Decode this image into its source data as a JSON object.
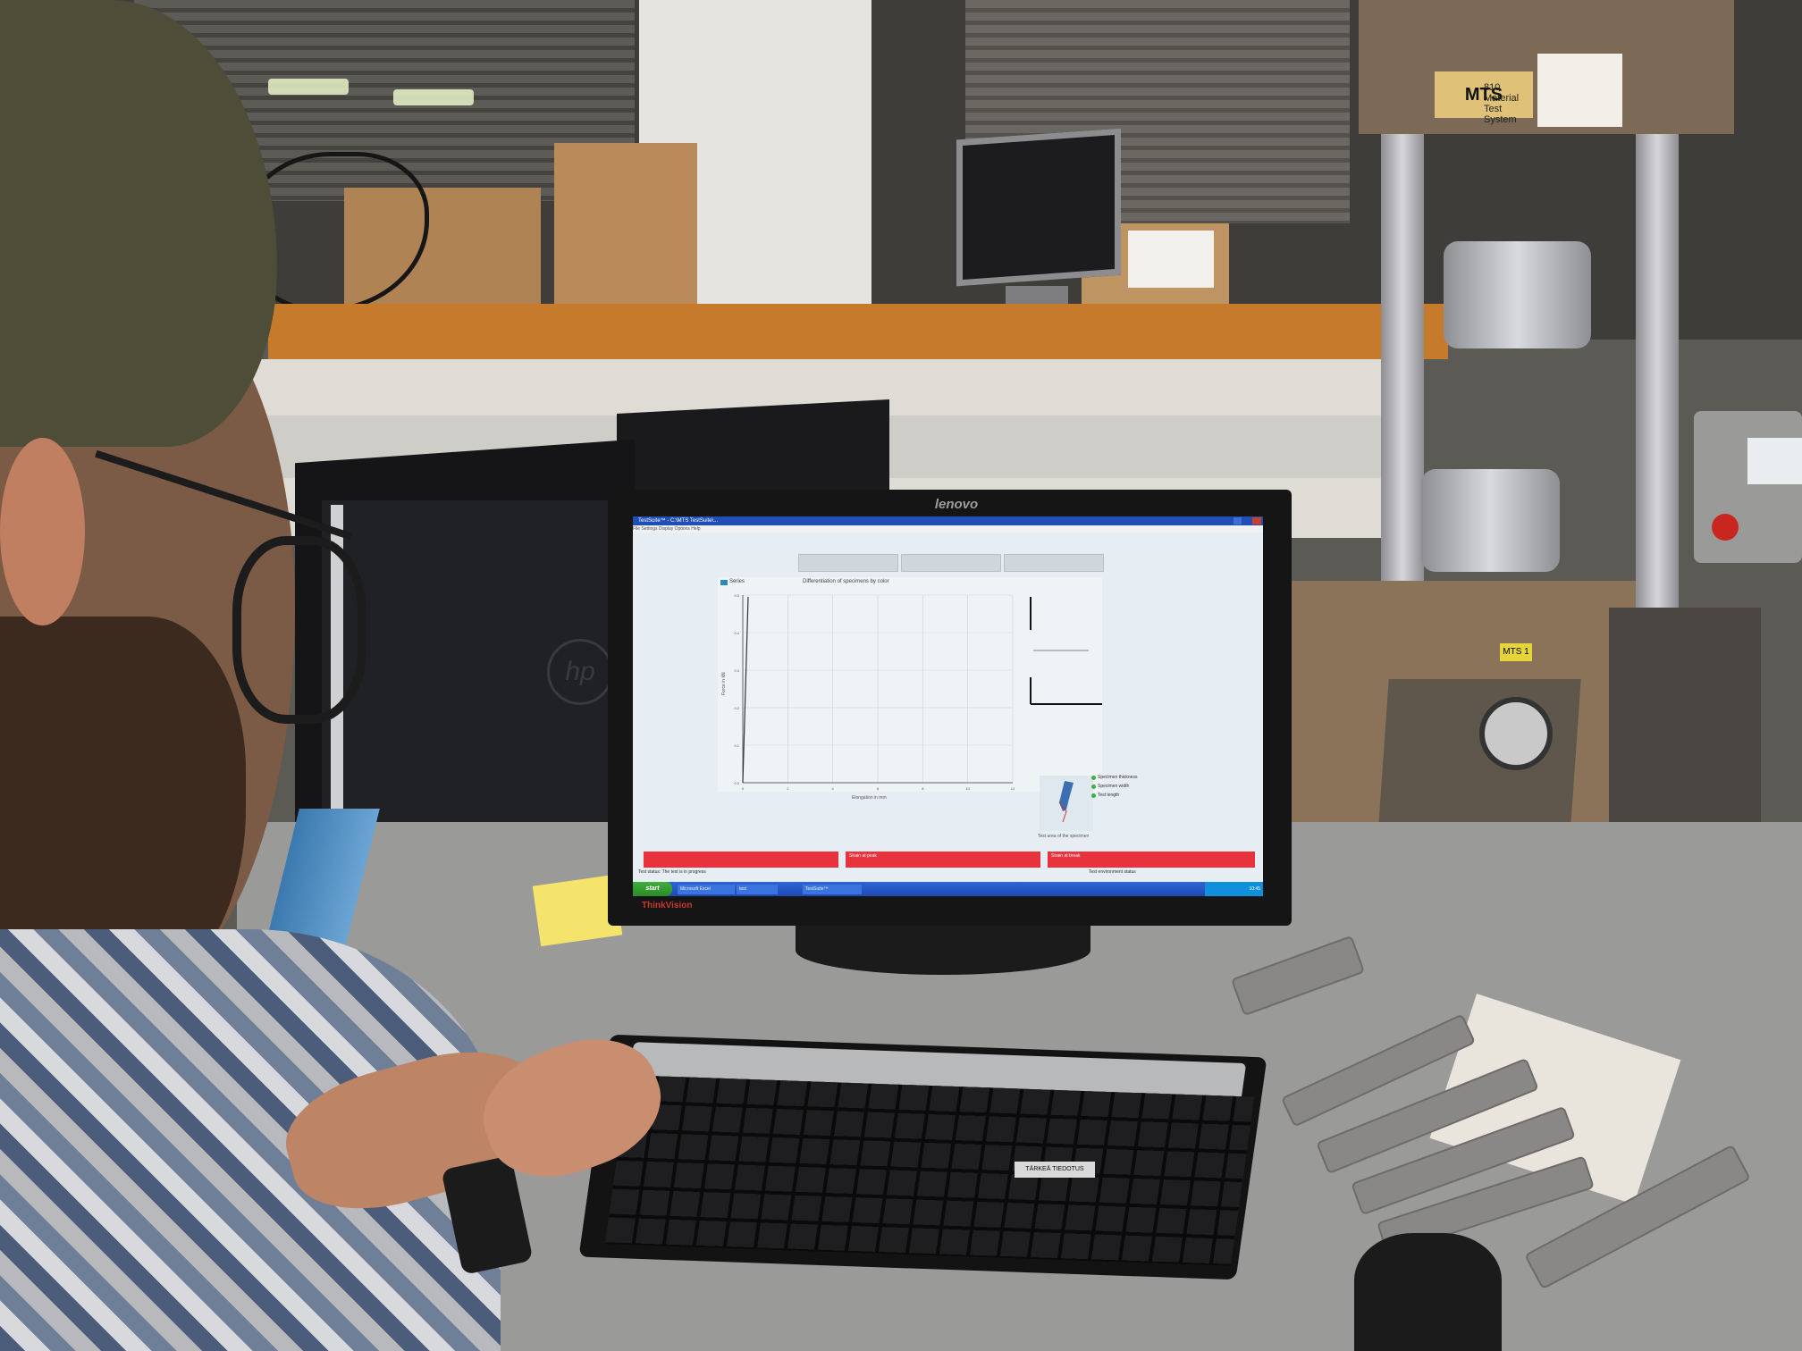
{
  "scene": {
    "monitor_brand": "lenovo",
    "monitor_model_logo": "ThinkVision",
    "machine_badge": "MTS",
    "machine_label": "810 Material Test System",
    "machine_tag": "MTS 1",
    "keyboard_brand": "hp",
    "keyboard_warning": "TÄRKEÄ TIEDOTUS"
  },
  "app": {
    "title": "TestSuite™ - C:\\MTS TestSuite\\...",
    "menu": "File  Settings  Display  Options  Help",
    "chart": {
      "title": "Differentiation of specimens by color",
      "legend": "Series",
      "xlabel": "Elongation in mm",
      "ylabel": "Force in kN",
      "yticks": [
        "0.0",
        "0.1",
        "0.2",
        "0.3",
        "0.4",
        "0.5"
      ],
      "xticks": [
        "0",
        "2",
        "4",
        "6",
        "8",
        "10",
        "12"
      ]
    },
    "specimen_items": [
      "Specimen thickness",
      "Specimen width",
      "Test length"
    ],
    "photo_caption": "Test area of the specimen",
    "result_bars": [
      "",
      "Strain at peak",
      "Strain at break"
    ],
    "status_left": "Test status: The test is in progress",
    "status_right": "Test environment status",
    "taskbar": {
      "start": "start",
      "items": [
        "Microsoft Excel",
        "test",
        "TestSuite™"
      ],
      "clock": "10:45"
    }
  },
  "colors": {
    "screen_bg": "#e6eef3",
    "result_bar": "#e8323c",
    "taskbar": "#2f64d8",
    "start_button": "#3fae3a"
  }
}
